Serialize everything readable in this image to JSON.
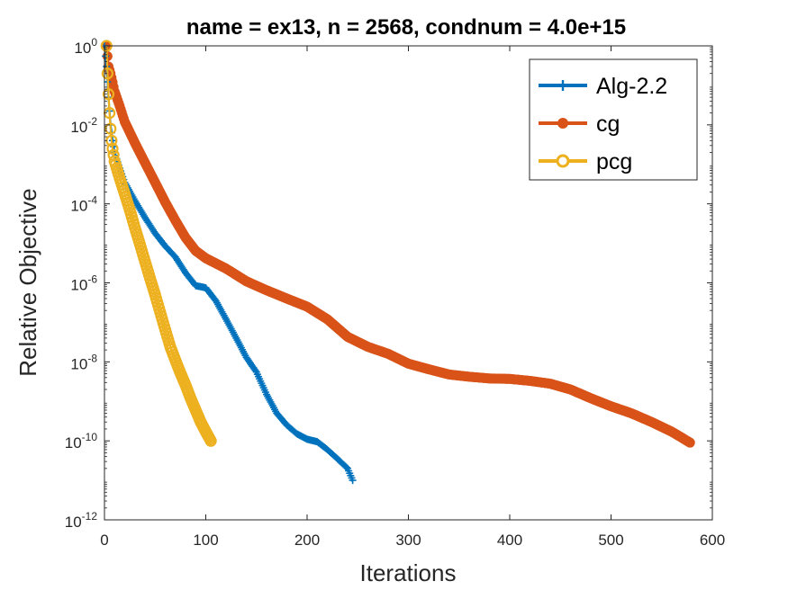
{
  "chart_data": {
    "type": "line",
    "title": "name = ex13, n = 2568, condnum = 4.0e+15",
    "xlabel": "Iterations",
    "ylabel": "Relative Objective",
    "xlim": [
      0,
      600
    ],
    "ylim": [
      1e-12,
      1
    ],
    "yscale": "log",
    "xticks": [
      0,
      100,
      200,
      300,
      400,
      500,
      600
    ],
    "ytick_exponents": [
      0,
      -2,
      -4,
      -6,
      -8,
      -10,
      -12
    ],
    "ytick_base": "10",
    "legend": "top-right",
    "grid": false,
    "series": [
      {
        "name": "Alg-2.2",
        "color": "#0072BD",
        "marker": "plus",
        "x": [
          0,
          2,
          4,
          6,
          8,
          10,
          15,
          20,
          30,
          40,
          50,
          60,
          70,
          80,
          90,
          100,
          110,
          120,
          130,
          140,
          150,
          160,
          170,
          180,
          190,
          200,
          210,
          220,
          230,
          240,
          245
        ],
        "y": [
          1,
          0.3,
          0.05,
          0.01,
          0.004,
          0.002,
          0.0008,
          0.00035,
          0.00012,
          4.5e-05,
          1.8e-05,
          8.5e-06,
          4.5e-06,
          1.8e-06,
          8.5e-07,
          7.5e-07,
          3.5e-07,
          1.2e-07,
          4e-08,
          1.3e-08,
          5.5e-09,
          1.5e-09,
          5e-10,
          2.5e-10,
          1.5e-10,
          1.1e-10,
          9.5e-11,
          6e-11,
          3.5e-11,
          2e-11,
          1e-11
        ]
      },
      {
        "name": "cg",
        "color": "#D95319",
        "marker": "circle-filled",
        "x": [
          2,
          4,
          6,
          8,
          10,
          15,
          20,
          30,
          40,
          50,
          60,
          70,
          80,
          90,
          100,
          120,
          140,
          160,
          180,
          200,
          220,
          240,
          260,
          280,
          300,
          320,
          340,
          360,
          380,
          400,
          420,
          440,
          460,
          480,
          500,
          520,
          540,
          560,
          570,
          578
        ],
        "y": [
          1,
          0.3,
          0.2,
          0.12,
          0.07,
          0.03,
          0.012,
          0.0035,
          0.0011,
          0.00035,
          0.00011,
          3.8e-05,
          1.4e-05,
          6.5e-06,
          4.2e-06,
          2.3e-06,
          1.1e-06,
          6.5e-07,
          4e-07,
          2.5e-07,
          1.2e-07,
          4.3e-08,
          2.4e-08,
          1.6e-08,
          9e-09,
          6.5e-09,
          4.8e-09,
          4.2e-09,
          3.8e-09,
          3.7e-09,
          3.3e-09,
          2.8e-09,
          2e-09,
          1.2e-09,
          7.5e-10,
          5e-10,
          3e-10,
          1.7e-10,
          1.2e-10,
          9e-11
        ]
      },
      {
        "name": "pcg",
        "color": "#EDB120",
        "marker": "circle-open",
        "x": [
          2,
          3,
          4,
          5,
          6,
          7,
          8,
          10,
          15,
          20,
          25,
          30,
          35,
          40,
          45,
          50,
          55,
          60,
          65,
          70,
          75,
          80,
          85,
          90,
          95,
          100,
          105
        ],
        "y": [
          1,
          0.2,
          0.06,
          0.02,
          0.008,
          0.004,
          0.0025,
          0.0012,
          0.00045,
          0.00018,
          7e-05,
          2.5e-05,
          9.5e-06,
          3.5e-06,
          1.3e-06,
          5e-07,
          1.8e-07,
          6.5e-08,
          2.4e-08,
          1.1e-08,
          5.2e-09,
          2.6e-09,
          1.2e-09,
          6e-10,
          3e-10,
          1.7e-10,
          1e-10
        ]
      }
    ]
  }
}
